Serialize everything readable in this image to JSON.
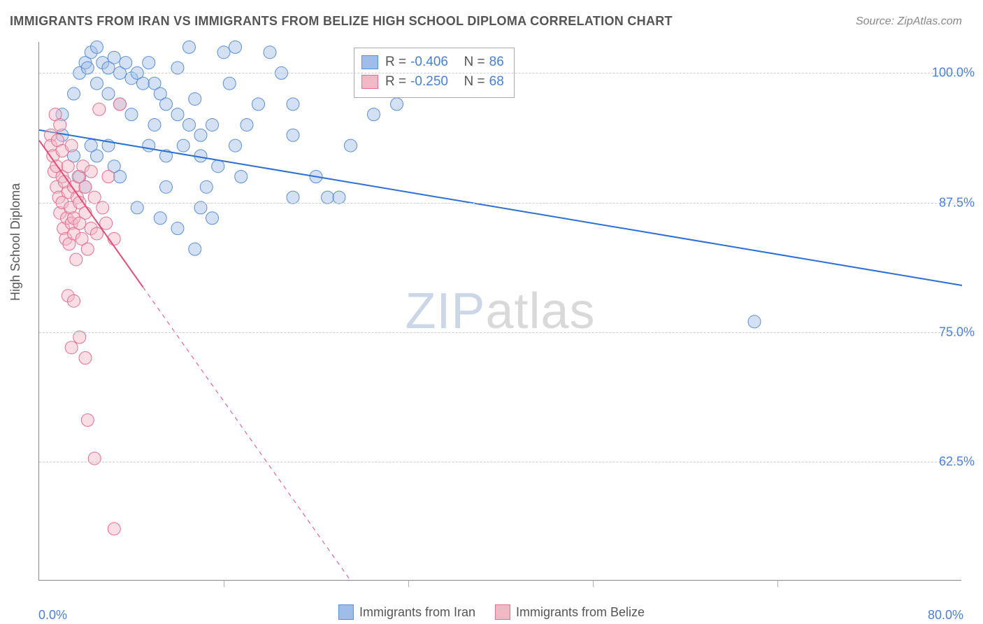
{
  "title": "IMMIGRANTS FROM IRAN VS IMMIGRANTS FROM BELIZE HIGH SCHOOL DIPLOMA CORRELATION CHART",
  "source": "Source: ZipAtlas.com",
  "ylabel": "High School Diploma",
  "watermark": {
    "part1": "ZIP",
    "part2": "atlas"
  },
  "chart": {
    "type": "scatter-with-regression",
    "background_color": "#ffffff",
    "grid_color": "#cccccc",
    "axis_color": "#888888",
    "tick_label_color": "#4a7fd6",
    "tick_fontsize": 18,
    "title_fontsize": 18,
    "title_color": "#555555",
    "xlim": [
      0,
      80
    ],
    "ylim": [
      51,
      103
    ],
    "x_ticks": [
      0,
      80
    ],
    "x_tick_labels": [
      "0.0%",
      "80.0%"
    ],
    "x_minor_ticks": [
      16,
      32,
      48,
      64
    ],
    "y_ticks": [
      62.5,
      75.0,
      87.5,
      100.0
    ],
    "y_tick_labels": [
      "62.5%",
      "75.0%",
      "87.5%",
      "100.0%"
    ],
    "marker_radius": 9,
    "marker_opacity": 0.45,
    "line_width": 2,
    "series": [
      {
        "name": "Immigrants from Iran",
        "color_fill": "#9fbde8",
        "color_stroke": "#5b8fd6",
        "line_color": "#2b6fd4",
        "R": -0.406,
        "N": 86,
        "regression": {
          "x1": 0,
          "y1": 94.5,
          "x2": 80,
          "y2": 79.5,
          "solid_until_x": 80
        },
        "points": [
          [
            2,
            94
          ],
          [
            2,
            96
          ],
          [
            3,
            98
          ],
          [
            3.5,
            100
          ],
          [
            4,
            101
          ],
          [
            4.2,
            100.5
          ],
          [
            4.5,
            102
          ],
          [
            5,
            102.5
          ],
          [
            5,
            99
          ],
          [
            5.5,
            101
          ],
          [
            6,
            100.5
          ],
          [
            6,
            98
          ],
          [
            6.5,
            101.5
          ],
          [
            7,
            100
          ],
          [
            7,
            97
          ],
          [
            7.5,
            101
          ],
          [
            8,
            99.5
          ],
          [
            8,
            96
          ],
          [
            8.5,
            100
          ],
          [
            9,
            99
          ],
          [
            9.5,
            101
          ],
          [
            10,
            99
          ],
          [
            10,
            95
          ],
          [
            10.5,
            98
          ],
          [
            11,
            92
          ],
          [
            11,
            97
          ],
          [
            12,
            96
          ],
          [
            12,
            100.5
          ],
          [
            12.5,
            93
          ],
          [
            13,
            95
          ],
          [
            13.5,
            97.5
          ],
          [
            14,
            94
          ],
          [
            14,
            92
          ],
          [
            14.5,
            89
          ],
          [
            15,
            95
          ],
          [
            15.5,
            91
          ],
          [
            16,
            102
          ],
          [
            16.5,
            99
          ],
          [
            17,
            93
          ],
          [
            17.5,
            90
          ],
          [
            18,
            95
          ],
          [
            19,
            97
          ],
          [
            13,
            102.5
          ],
          [
            20,
            102
          ],
          [
            14,
            87
          ],
          [
            15,
            86
          ],
          [
            11,
            89
          ],
          [
            12,
            85
          ],
          [
            5,
            92
          ],
          [
            6,
            93
          ],
          [
            6.5,
            91
          ],
          [
            7,
            90
          ],
          [
            3,
            92
          ],
          [
            3.5,
            90
          ],
          [
            4,
            89
          ],
          [
            4.5,
            93
          ],
          [
            8.5,
            87
          ],
          [
            9.5,
            93
          ],
          [
            10.5,
            86
          ],
          [
            13.5,
            83
          ],
          [
            17,
            102.5
          ],
          [
            21,
            100
          ],
          [
            22,
            94
          ],
          [
            22,
            97
          ],
          [
            22,
            88
          ],
          [
            24,
            90
          ],
          [
            25,
            88
          ],
          [
            26,
            88
          ],
          [
            27,
            93
          ],
          [
            29,
            96
          ],
          [
            31,
            97
          ],
          [
            62,
            76
          ]
        ]
      },
      {
        "name": "Immigrants from Belize",
        "color_fill": "#f2b8c6",
        "color_stroke": "#e36f8f",
        "line_color": "#e14d78",
        "R": -0.25,
        "N": 68,
        "regression": {
          "x1": 0,
          "y1": 93.5,
          "x2": 27,
          "y2": 51,
          "solid_until_x": 9
        },
        "points": [
          [
            1,
            94
          ],
          [
            1,
            93
          ],
          [
            1.2,
            92
          ],
          [
            1.3,
            90.5
          ],
          [
            1.4,
            96
          ],
          [
            1.5,
            89
          ],
          [
            1.5,
            91
          ],
          [
            1.6,
            93.5
          ],
          [
            1.7,
            88
          ],
          [
            1.8,
            86.5
          ],
          [
            1.8,
            95
          ],
          [
            2,
            87.5
          ],
          [
            2,
            90
          ],
          [
            2,
            92.5
          ],
          [
            2.1,
            85
          ],
          [
            2.2,
            89.5
          ],
          [
            2.3,
            84
          ],
          [
            2.4,
            86
          ],
          [
            2.5,
            88.5
          ],
          [
            2.5,
            91
          ],
          [
            2.6,
            83.5
          ],
          [
            2.7,
            87
          ],
          [
            2.8,
            85.5
          ],
          [
            2.8,
            93
          ],
          [
            3,
            86
          ],
          [
            3,
            89
          ],
          [
            3,
            84.5
          ],
          [
            3.2,
            82
          ],
          [
            3.3,
            88
          ],
          [
            3.4,
            90
          ],
          [
            3.5,
            85.5
          ],
          [
            3.5,
            87.5
          ],
          [
            3.7,
            84
          ],
          [
            3.8,
            91
          ],
          [
            4,
            86.5
          ],
          [
            4,
            89
          ],
          [
            4.2,
            83
          ],
          [
            4.5,
            85
          ],
          [
            4.5,
            90.5
          ],
          [
            4.8,
            88
          ],
          [
            5,
            84.5
          ],
          [
            5.2,
            96.5
          ],
          [
            5.5,
            87
          ],
          [
            5.8,
            85.5
          ],
          [
            6,
            90
          ],
          [
            6.5,
            84
          ],
          [
            7,
            97
          ],
          [
            2.5,
            78.5
          ],
          [
            3,
            78
          ],
          [
            2.8,
            73.5
          ],
          [
            3.5,
            74.5
          ],
          [
            4,
            72.5
          ],
          [
            4.2,
            66.5
          ],
          [
            4.8,
            62.8
          ],
          [
            6.5,
            56
          ]
        ]
      }
    ],
    "bottom_legend": [
      {
        "label": "Immigrants from Iran",
        "fill": "#9fbde8",
        "stroke": "#5b8fd6"
      },
      {
        "label": "Immigrants from Belize",
        "fill": "#f2b8c6",
        "stroke": "#e36f8f"
      }
    ]
  }
}
